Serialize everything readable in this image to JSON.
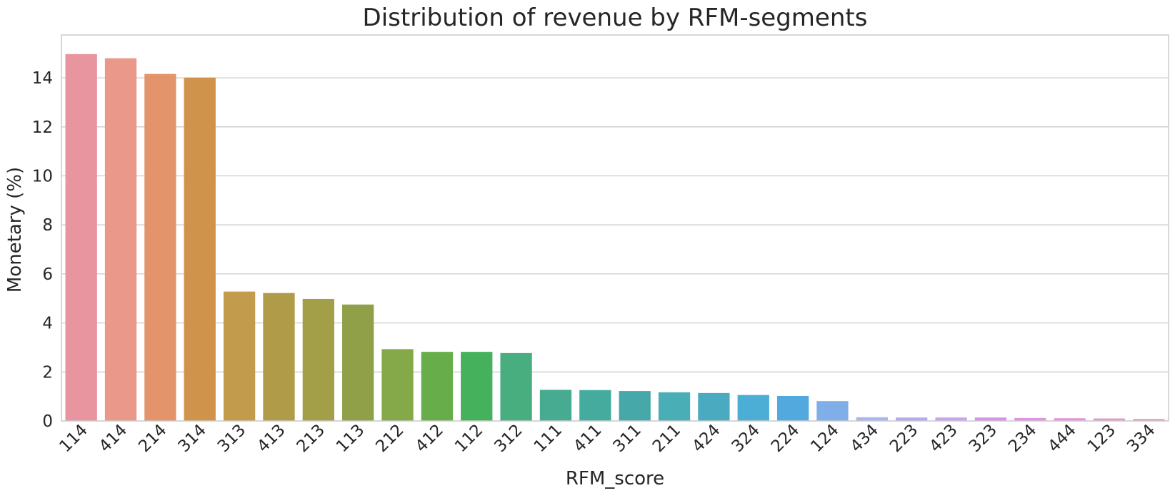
{
  "chart_data": {
    "type": "bar",
    "title": "Distribution of revenue by RFM-segments",
    "xlabel": "RFM_score",
    "ylabel": "Monetary (%)",
    "ylim": [
      0,
      15.75
    ],
    "yticks": [
      0,
      2,
      4,
      6,
      8,
      10,
      12,
      14
    ],
    "grid": "horizontal",
    "legend": "none",
    "categories": [
      "114",
      "414",
      "214",
      "314",
      "313",
      "413",
      "213",
      "113",
      "212",
      "412",
      "112",
      "312",
      "111",
      "411",
      "311",
      "211",
      "424",
      "324",
      "224",
      "124",
      "434",
      "223",
      "423",
      "323",
      "234",
      "444",
      "123",
      "334"
    ],
    "values": [
      14.97,
      14.8,
      14.16,
      14.01,
      5.28,
      5.22,
      4.98,
      4.75,
      2.93,
      2.82,
      2.82,
      2.77,
      1.27,
      1.26,
      1.22,
      1.17,
      1.14,
      1.06,
      1.02,
      0.81,
      0.15,
      0.14,
      0.14,
      0.14,
      0.12,
      0.11,
      0.1,
      0.08
    ],
    "colors": [
      "#e8959f",
      "#e9988a",
      "#e3946a",
      "#d0934b",
      "#c29b4d",
      "#b09b48",
      "#a29f48",
      "#8fa048",
      "#85a848",
      "#67ae4b",
      "#46b15d",
      "#48ad7f",
      "#47ab91",
      "#45ab9e",
      "#47a8aa",
      "#4aaeb6",
      "#4aaabf",
      "#4caed4",
      "#52a9de",
      "#7faee8",
      "#a9b4f1",
      "#b7a8ef",
      "#caa4ef",
      "#d295e8",
      "#e093e4",
      "#e394dc",
      "#e796c9",
      "#e89ab3"
    ]
  }
}
